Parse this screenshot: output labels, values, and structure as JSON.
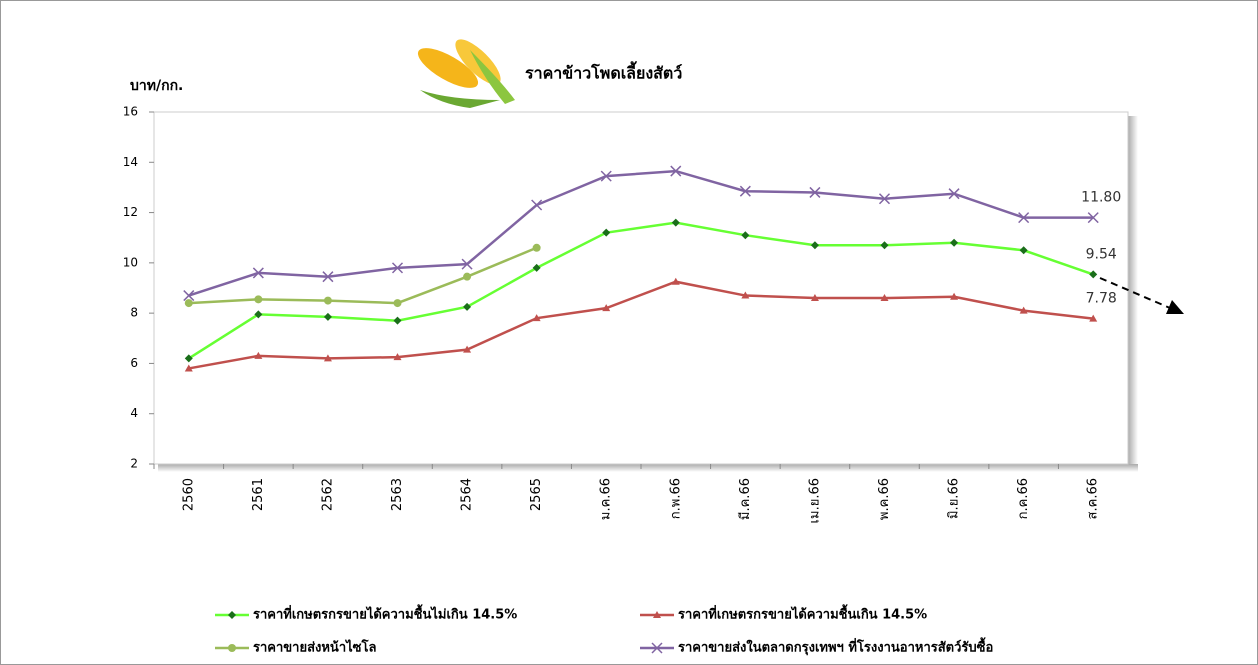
{
  "chart_data": {
    "type": "line",
    "title": "ราคาข้าวโพดเลี้ยงสัตว์",
    "y_label": "บาท/กก.",
    "categories": [
      "2560",
      "2561",
      "2562",
      "2563",
      "2564",
      "2565",
      "ม.ค.66",
      "ก.พ.66",
      "มี.ค.66",
      "เม.ย.66",
      "พ.ค.66",
      "มิ.ย.66",
      "ก.ค.66",
      "ส.ค.66"
    ],
    "series": [
      {
        "name": "ราคาที่เกษตรกรขายได้ความชื้นไม่เกิน 14.5%",
        "color": "#66ff33",
        "marker": "diamond",
        "marker_color": "#1a6e1a",
        "values": [
          6.2,
          7.95,
          7.85,
          7.7,
          8.25,
          9.8,
          11.2,
          11.6,
          11.1,
          10.7,
          10.7,
          10.8,
          10.5,
          9.54
        ],
        "value_labels": [
          null,
          null,
          null,
          null,
          null,
          null,
          null,
          null,
          null,
          null,
          null,
          null,
          null,
          "9.54"
        ]
      },
      {
        "name": "ราคาที่เกษตรกรขายได้ความชื้นเกิน 14.5%",
        "color": "#c0504d",
        "marker": "triangle",
        "marker_color": "#c0504d",
        "values": [
          5.8,
          6.3,
          6.2,
          6.25,
          6.55,
          7.8,
          8.2,
          9.25,
          8.7,
          8.6,
          8.6,
          8.65,
          8.1,
          7.78
        ],
        "value_labels": [
          null,
          null,
          null,
          null,
          null,
          null,
          null,
          null,
          null,
          null,
          null,
          null,
          null,
          "7.78"
        ]
      },
      {
        "name": "ราคาขายส่งหน้าไซโล",
        "color": "#9bbb59",
        "marker": "circle",
        "marker_color": "#9bbb59",
        "values": [
          8.4,
          8.55,
          8.5,
          8.4,
          9.45,
          10.6,
          null,
          null,
          null,
          null,
          null,
          null,
          null,
          null
        ]
      },
      {
        "name": "ราคาขายส่งในตลาดกรุงเทพฯ ที่โรงงานอาหารสัตว์รับซื้อ",
        "color": "#8064a2",
        "marker": "x",
        "marker_color": "#8064a2",
        "values": [
          8.7,
          9.6,
          9.45,
          9.8,
          9.95,
          12.3,
          13.45,
          13.65,
          12.85,
          12.8,
          12.55,
          12.75,
          11.8,
          11.8
        ],
        "value_labels": [
          null,
          null,
          null,
          null,
          null,
          null,
          null,
          null,
          null,
          null,
          null,
          null,
          null,
          "11.80"
        ]
      }
    ],
    "ylim": [
      2,
      16
    ],
    "yticks": [
      2,
      4,
      6,
      8,
      10,
      12,
      14,
      16
    ],
    "grid": false
  }
}
